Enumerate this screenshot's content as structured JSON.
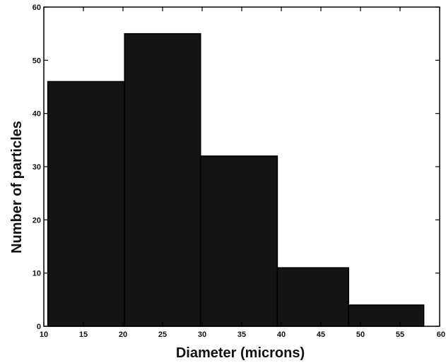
{
  "chart_data": {
    "type": "bar",
    "subtype": "histogram",
    "title": "",
    "xlabel": "Diameter (microns)",
    "ylabel": "Number of particles",
    "xlim": [
      10,
      60
    ],
    "ylim": [
      0,
      60
    ],
    "xticks": [
      10,
      15,
      20,
      25,
      30,
      35,
      40,
      45,
      50,
      55,
      60
    ],
    "yticks": [
      0,
      10,
      20,
      30,
      40,
      50,
      60
    ],
    "xtick_labels": [
      "10",
      "15",
      "20",
      "25",
      "30",
      "35",
      "40",
      "45",
      "50",
      "55",
      "60"
    ],
    "ytick_labels": [
      "0",
      "10",
      "20",
      "30",
      "40",
      "50",
      "60"
    ],
    "grid": false,
    "legend": "none",
    "bins": [
      {
        "x0": 10.5,
        "x1": 20.2,
        "value": 46
      },
      {
        "x0": 20.2,
        "x1": 29.8,
        "value": 55
      },
      {
        "x0": 29.8,
        "x1": 39.5,
        "value": 32
      },
      {
        "x0": 39.5,
        "x1": 48.5,
        "value": 11
      },
      {
        "x0": 48.5,
        "x1": 58.0,
        "value": 4
      }
    ],
    "colors": {
      "bar_fill": "#141414",
      "bar_edge": "#000000",
      "axis": "#000000",
      "background": "#ffffff"
    }
  }
}
